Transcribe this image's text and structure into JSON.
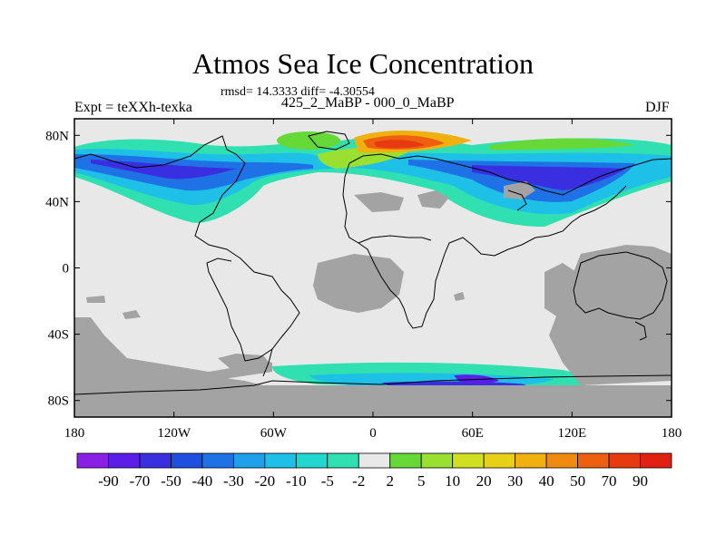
{
  "title": "Atmos Sea Ice Concentration",
  "stats": "rmsd= 14.3333 diff= -4.30554",
  "experiment": "Expt = teXXh-texka",
  "period": "425_2_MaBP - 000_0_MaBP",
  "season": "DJF",
  "map": {
    "projection": "cylindrical-equidistant",
    "lon_range": [
      -180,
      180
    ],
    "lat_range": [
      -90,
      90
    ],
    "x_ticks": [
      "180",
      "120W",
      "60W",
      "0",
      "60E",
      "120E",
      "180"
    ],
    "y_ticks": [
      "80N",
      "40N",
      "0",
      "40S",
      "80S"
    ],
    "land_color": "#a3a3a3",
    "background_color": "#e8e8e8",
    "coastline_color": "#000000"
  },
  "colorbar": {
    "labels": [
      "-90",
      "-70",
      "-50",
      "-40",
      "-30",
      "-20",
      "-10",
      "-5",
      "-2",
      "2",
      "5",
      "10",
      "20",
      "30",
      "40",
      "50",
      "70",
      "90"
    ],
    "colors": [
      "#8a1fe6",
      "#5a1ee8",
      "#3a2fe0",
      "#1f4fe0",
      "#1f72e6",
      "#1fa0ea",
      "#1fc0e8",
      "#20d8d0",
      "#30e0b0",
      "#e8e8e8",
      "#66d838",
      "#9ae030",
      "#d0e020",
      "#e8d018",
      "#f0b010",
      "#f08a10",
      "#ec6010",
      "#e83a10",
      "#e02010"
    ]
  }
}
